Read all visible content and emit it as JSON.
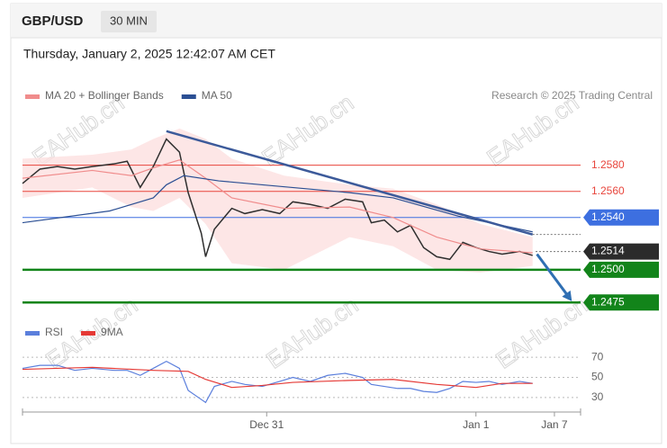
{
  "header": {
    "symbol": "GBP/USD",
    "interval": "30 MIN",
    "timestamp": "Thursday, January 2, 2025 12:42:07 AM CET",
    "credit": "Research © 2025 Trading Central"
  },
  "watermark": "EAHub.cn",
  "chart_data": [
    {
      "type": "line",
      "xlim": [
        0,
        128
      ],
      "ylim": [
        1.2469,
        1.261
      ],
      "series": [
        {
          "color": "#2f2f2f",
          "x": [
            0,
            4,
            8,
            12,
            16,
            21,
            24,
            27,
            30,
            33,
            36,
            38,
            41,
            42,
            44,
            48,
            51,
            55,
            59,
            62,
            66,
            70,
            74,
            78,
            80,
            83,
            86,
            89,
            92,
            95,
            98,
            101,
            104,
            107,
            110,
            114,
            117
          ],
          "values": [
            1.2566,
            1.2577,
            1.2579,
            1.2577,
            1.2579,
            1.2581,
            1.2583,
            1.2563,
            1.2579,
            1.26,
            1.259,
            1.2559,
            1.2528,
            1.251,
            1.2531,
            1.2547,
            1.2543,
            1.2546,
            1.2543,
            1.2552,
            1.255,
            1.2547,
            1.2554,
            1.2552,
            1.2536,
            1.2538,
            1.2529,
            1.2534,
            1.2517,
            1.251,
            1.2508,
            1.2521,
            1.2517,
            1.2514,
            1.2512,
            1.2514,
            1.2511
          ]
        },
        {
          "name": "MA 20 + Bollinger Bands",
          "color": "#f08c8c",
          "band_color": "#fde0e0",
          "x": [
            0,
            16,
            25,
            30,
            36,
            42,
            48,
            60,
            75,
            85,
            95,
            105,
            117
          ],
          "values": [
            1.257,
            1.2576,
            1.2572,
            1.2578,
            1.2584,
            1.257,
            1.2555,
            1.2547,
            1.2548,
            1.254,
            1.2525,
            1.2516,
            1.2513
          ],
          "upper": [
            1.2585,
            1.2588,
            1.2592,
            1.26,
            1.2608,
            1.26,
            1.2585,
            1.2572,
            1.2565,
            1.2562,
            1.255,
            1.2535,
            1.2525
          ],
          "lower": [
            1.2555,
            1.2563,
            1.2548,
            1.2545,
            1.2555,
            1.2535,
            1.2505,
            1.25,
            1.2525,
            1.2518,
            1.25,
            1.2498,
            1.2503
          ]
        },
        {
          "name": "MA 50",
          "color": "#2b4f93",
          "x": [
            0,
            20,
            30,
            33,
            37,
            45,
            55,
            75,
            85,
            100,
            117
          ],
          "values": [
            1.2536,
            1.2545,
            1.2555,
            1.2565,
            1.2572,
            1.2568,
            1.2565,
            1.2559,
            1.2555,
            1.2541,
            1.2529
          ]
        }
      ],
      "trendline": {
        "color": "#3c5a9a",
        "x": [
          33,
          117
        ],
        "values": [
          1.2606,
          1.2527
        ]
      },
      "forecast": {
        "color": "#2f6fb3",
        "x": [
          118,
          126
        ],
        "values": [
          1.2512,
          1.2476
        ]
      },
      "levels": [
        {
          "value": 1.258,
          "label": "1.2580",
          "color": "#e8453c",
          "box": false,
          "line": "thin"
        },
        {
          "value": 1.256,
          "label": "1.2560",
          "color": "#e8453c",
          "box": false,
          "line": "thin"
        },
        {
          "value": 1.254,
          "label": "1.2540",
          "color": "#3d6fe0",
          "box": true,
          "line": "thin"
        },
        {
          "value": 1.2514,
          "label": "1.2514",
          "color": "#2b2b2b",
          "box": true,
          "line": "dotted"
        },
        {
          "value": 1.25,
          "label": "1.2500",
          "color": "#12841a",
          "box": true,
          "line": "bold"
        },
        {
          "value": 1.2475,
          "label": "1.2475",
          "color": "#12841a",
          "box": true,
          "line": "bold"
        }
      ]
    },
    {
      "type": "line",
      "xlim": [
        0,
        128
      ],
      "ylim": [
        20,
        80
      ],
      "yticks": [
        30,
        50,
        70
      ],
      "grid": true,
      "xticks": [
        {
          "value": 56,
          "label": "Dec 31"
        },
        {
          "value": 104,
          "label": "Jan 1"
        },
        {
          "value": 122,
          "label": "Jan 7"
        }
      ],
      "series": [
        {
          "name": "RSI",
          "color": "#5b7fdc",
          "x": [
            0,
            4,
            8,
            12,
            16,
            21,
            24,
            27,
            30,
            33,
            36,
            38,
            41,
            42,
            44,
            48,
            51,
            55,
            59,
            62,
            66,
            70,
            74,
            78,
            80,
            83,
            86,
            89,
            92,
            95,
            98,
            101,
            104,
            107,
            110,
            114,
            117
          ],
          "values": [
            59,
            62,
            62,
            57,
            59,
            57,
            57,
            52,
            59,
            66,
            59,
            37,
            28,
            25,
            41,
            46,
            43,
            41,
            46,
            50,
            46,
            52,
            54,
            50,
            43,
            41,
            39,
            39,
            36,
            35,
            39,
            46,
            45,
            46,
            43,
            46,
            44
          ]
        },
        {
          "name": "9MA",
          "color": "#e53935",
          "x": [
            0,
            16,
            30,
            38,
            42,
            48,
            55,
            62,
            75,
            85,
            95,
            104,
            110,
            117
          ],
          "values": [
            58,
            60,
            57,
            56,
            48,
            40,
            42,
            45,
            47,
            48,
            43,
            40,
            44,
            44
          ]
        }
      ]
    }
  ]
}
